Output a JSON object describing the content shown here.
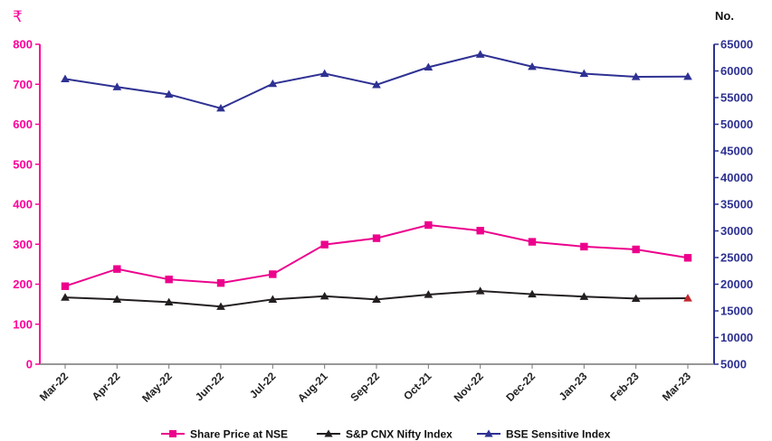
{
  "chart_data": {
    "type": "line",
    "categories": [
      "Mar-22",
      "Apr-22",
      "May-22",
      "Jun-22",
      "Jul-22",
      "Aug-21",
      "Sep-22",
      "Oct-21",
      "Nov-22",
      "Dec-22",
      "Jan-23",
      "Feb-23",
      "Mar-23"
    ],
    "left_axis": {
      "unit": "₹",
      "ylim": [
        0,
        800
      ],
      "ticks": [
        0,
        100,
        200,
        300,
        400,
        500,
        600,
        700,
        800
      ]
    },
    "right_axis": {
      "unit": "No.",
      "ylim": [
        5000,
        65000
      ],
      "ticks": [
        5000,
        10000,
        15000,
        20000,
        25000,
        30000,
        35000,
        40000,
        45000,
        50000,
        55000,
        60000,
        65000
      ]
    },
    "series": [
      {
        "name": "Share Price at NSE",
        "axis": "left",
        "marker": "square",
        "color": "#ec008c",
        "values": [
          195,
          238,
          212,
          203,
          225,
          299,
          315,
          348,
          334,
          306,
          294,
          287,
          266
        ]
      },
      {
        "name": "S&P CNX Nifty Index",
        "axis": "left",
        "marker": "triangle",
        "color": "#231f20",
        "values": [
          167,
          162,
          155,
          144,
          162,
          170,
          162,
          174,
          183,
          175,
          169,
          164,
          165
        ]
      },
      {
        "name": "BSE Sensitive Index",
        "axis": "right",
        "marker": "triangle",
        "color": "#2e3192",
        "values": [
          58500,
          57000,
          55600,
          53000,
          57600,
          59500,
          57400,
          60700,
          63100,
          60800,
          59500,
          58900,
          58950
        ]
      }
    ],
    "grid": false,
    "legend": "bottom"
  }
}
